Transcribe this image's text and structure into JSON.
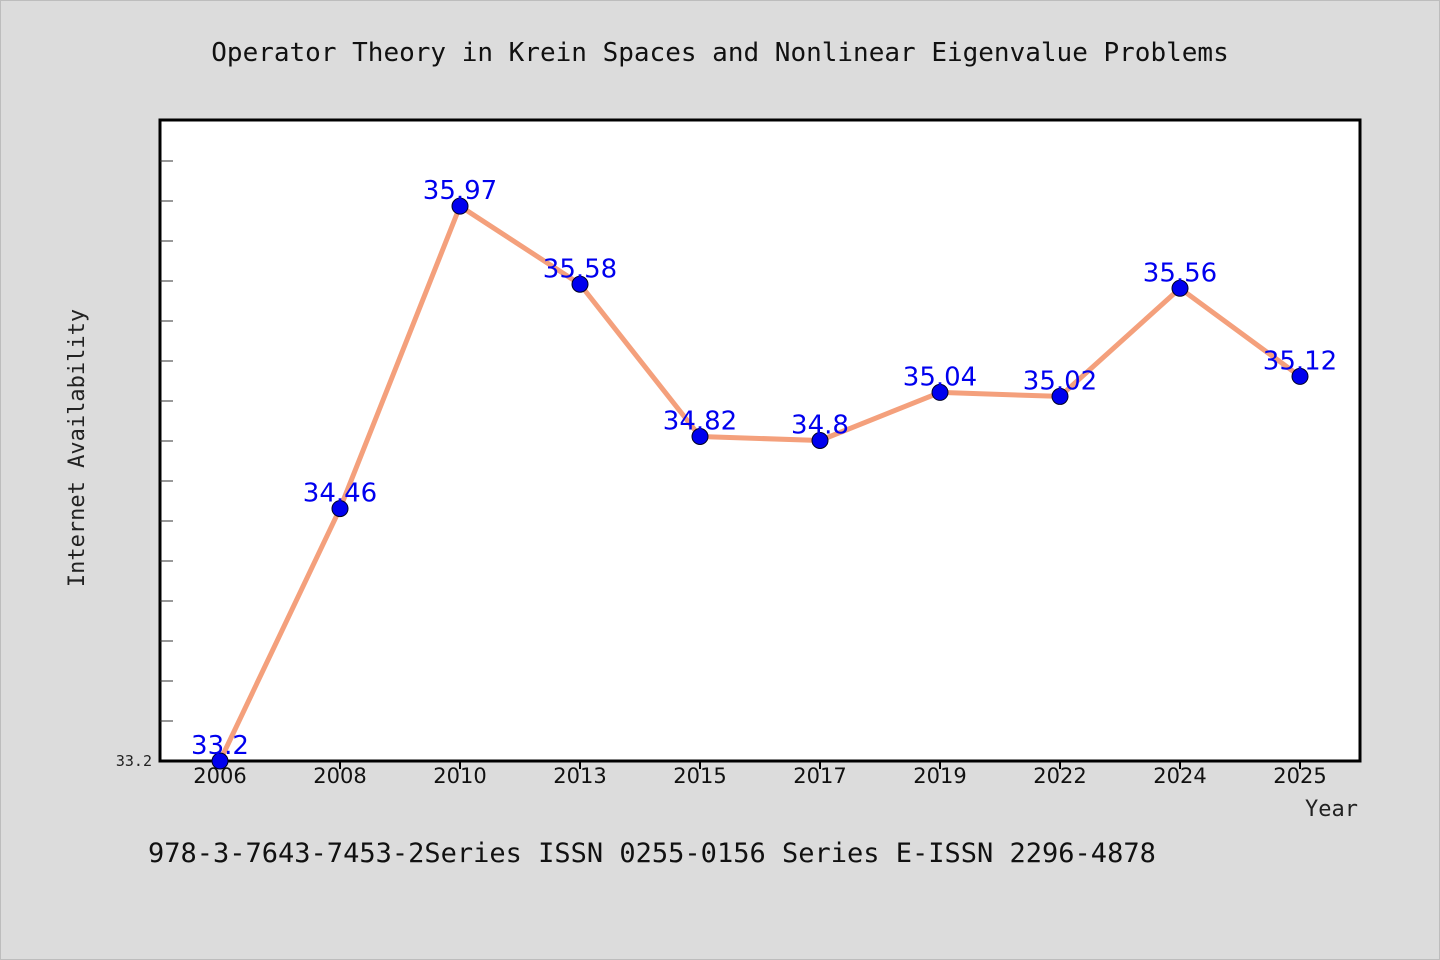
{
  "chart_data": {
    "type": "line",
    "title": "Operator Theory in Krein Spaces and Nonlinear Eigenvalue Problems",
    "xlabel": "Year",
    "ylabel": "Internet Availability",
    "categories": [
      "2006",
      "2008",
      "2010",
      "2013",
      "2015",
      "2017",
      "2019",
      "2022",
      "2024",
      "2025"
    ],
    "values": [
      33.2,
      34.46,
      35.97,
      35.58,
      34.82,
      34.8,
      35.04,
      35.02,
      35.56,
      35.12
    ],
    "data_labels": [
      "33.2",
      "34.46",
      "35.97",
      "35.58",
      "34.82",
      "34.8",
      "35.04",
      "35.02",
      "35.56",
      "35.12"
    ],
    "ylim": [
      33.2,
      36.4
    ],
    "ytick_label": "33.2",
    "grid": false,
    "line_color": "#f4a07c",
    "marker_color": "#0000ee",
    "label_color": "#0000ee"
  },
  "footer": "978-3-7643-7453-2Series ISSN 0255-0156 Series E-ISSN 2296-4878"
}
